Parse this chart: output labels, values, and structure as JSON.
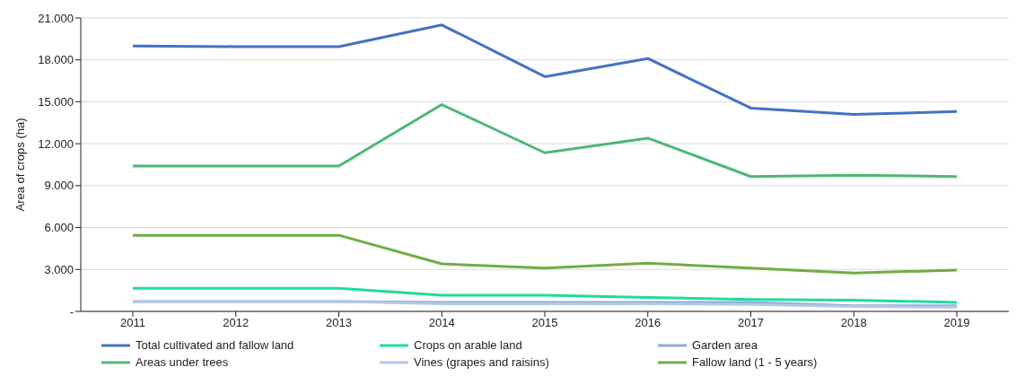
{
  "chart_data": {
    "type": "line",
    "ylabel": "Area of crops (ha)",
    "categories": [
      "2011",
      "2012",
      "2013",
      "2014",
      "2015",
      "2016",
      "2017",
      "2018",
      "2019"
    ],
    "series": [
      {
        "name": "Total cultivated and fallow land",
        "color": "#4472c4",
        "values": [
          19000,
          18950,
          18950,
          20500,
          16800,
          18100,
          14550,
          14100,
          14300
        ]
      },
      {
        "name": "Crops on arable land",
        "color": "#1fdc9c",
        "values": [
          1650,
          1650,
          1650,
          1150,
          1150,
          1000,
          850,
          800,
          650
        ]
      },
      {
        "name": "Garden area",
        "color": "#8faadc",
        "values": [
          700,
          700,
          700,
          650,
          650,
          650,
          650,
          400,
          400
        ]
      },
      {
        "name": "Areas under trees",
        "color": "#4cb878",
        "values": [
          10400,
          10400,
          10400,
          14800,
          11350,
          12400,
          9650,
          9750,
          9650
        ]
      },
      {
        "name": "Vines (grapes and raisins)",
        "color": "#b4c7e7",
        "values": [
          700,
          700,
          700,
          550,
          550,
          550,
          500,
          350,
          300
        ]
      },
      {
        "name": "Fallow land (1 - 5 years)",
        "color": "#70ad47",
        "values": [
          5450,
          5450,
          5450,
          3400,
          3100,
          3450,
          3100,
          2750,
          2950
        ]
      }
    ],
    "ylim": [
      0,
      21000
    ],
    "yticks": [
      {
        "value": 0,
        "label": "-"
      },
      {
        "value": 3000,
        "label": "3.000"
      },
      {
        "value": 6000,
        "label": "6.000"
      },
      {
        "value": 9000,
        "label": "9.000"
      },
      {
        "value": 12000,
        "label": "12.000"
      },
      {
        "value": 15000,
        "label": "15.000"
      },
      {
        "value": 18000,
        "label": "18.000"
      },
      {
        "value": 21000,
        "label": "21.000"
      }
    ],
    "grid": "y",
    "legend": "bottom",
    "marker": "none",
    "line_style": "solid"
  }
}
